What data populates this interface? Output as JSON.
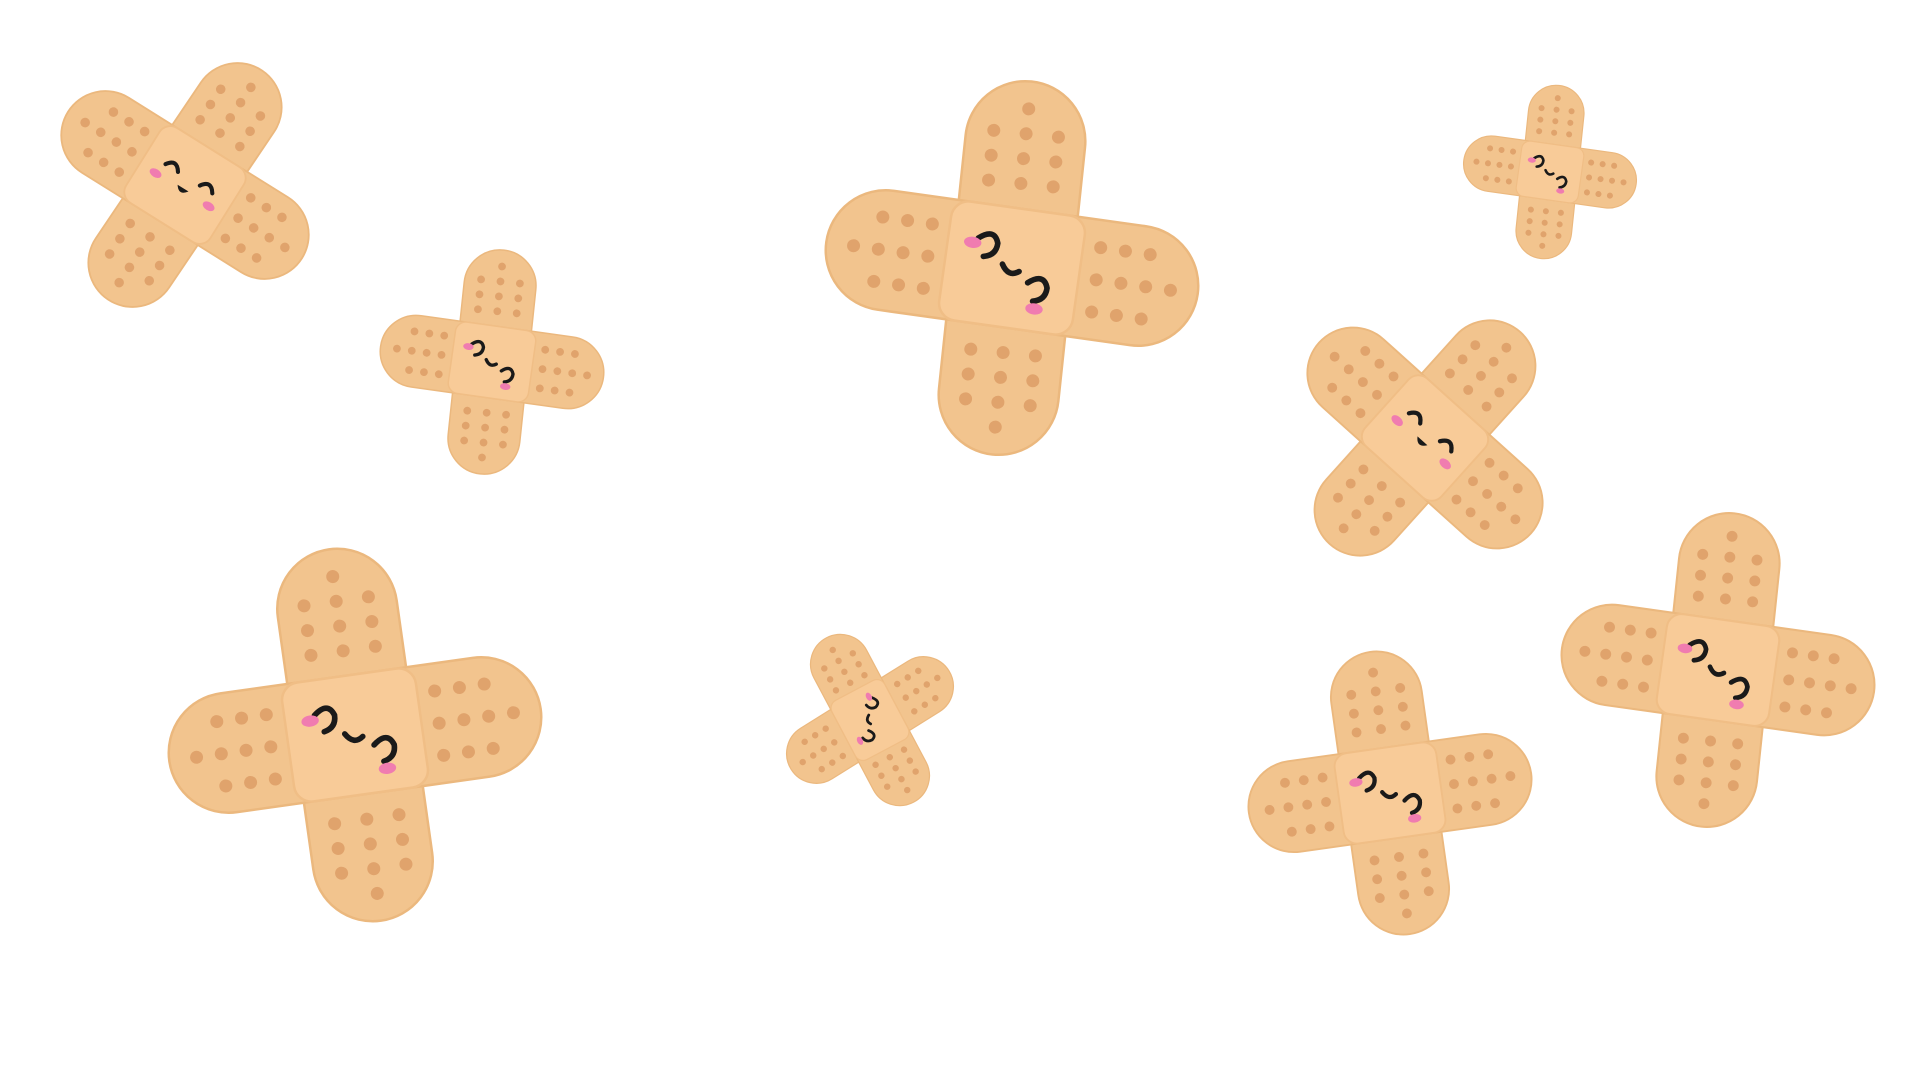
{
  "scene": {
    "background_color": "#ffffff",
    "subject": "kawaii-crossed-bandages",
    "colors": {
      "strip": "#F2C48E",
      "pad": "#F8CB98",
      "holes": "#E0A36C",
      "face": "#1a1a1a",
      "blush": "#F07CB0"
    },
    "stickers": [
      {
        "name": "bandage-cross-1",
        "expression": "happy"
      },
      {
        "name": "bandage-cross-2",
        "expression": "wink"
      },
      {
        "name": "bandage-cross-3",
        "expression": "wink"
      },
      {
        "name": "bandage-cross-4",
        "expression": "wink"
      },
      {
        "name": "bandage-cross-5",
        "expression": "happy"
      },
      {
        "name": "bandage-cross-6",
        "expression": "wink"
      },
      {
        "name": "bandage-cross-7",
        "expression": "wink"
      },
      {
        "name": "bandage-cross-8",
        "expression": "wink"
      },
      {
        "name": "bandage-cross-9",
        "expression": "wink"
      }
    ]
  }
}
